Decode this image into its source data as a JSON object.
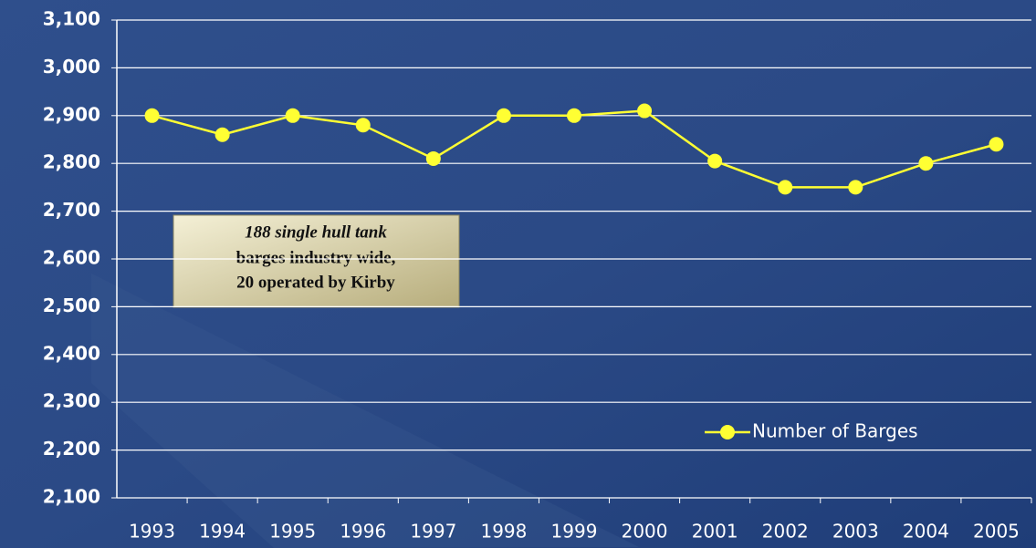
{
  "chart_data": {
    "type": "line",
    "categories": [
      "1993",
      "1994",
      "1995",
      "1996",
      "1997",
      "1998",
      "1999",
      "2000",
      "2001",
      "2002",
      "2003",
      "2004",
      "2005"
    ],
    "series": [
      {
        "name": "Number of Barges",
        "color": "#ffff33",
        "values": [
          2900,
          2860,
          2900,
          2880,
          2810,
          2900,
          2900,
          2910,
          2805,
          2750,
          2750,
          2800,
          2840
        ]
      }
    ],
    "ylim": [
      2100,
      3100
    ],
    "yticks": [
      {
        "value": 2100,
        "label": "2,100"
      },
      {
        "value": 2200,
        "label": "2,200"
      },
      {
        "value": 2300,
        "label": "2,300"
      },
      {
        "value": 2400,
        "label": "2,400"
      },
      {
        "value": 2500,
        "label": "2,500"
      },
      {
        "value": 2600,
        "label": "2,600"
      },
      {
        "value": 2700,
        "label": "2,700"
      },
      {
        "value": 2800,
        "label": "2,800"
      },
      {
        "value": 2900,
        "label": "2,900"
      },
      {
        "value": 3000,
        "label": "3,000"
      },
      {
        "value": 3100,
        "label": "3,100"
      }
    ],
    "grid": true,
    "legend": "lower-right",
    "annotation": [
      "188 single hull tank",
      "barges industry wide,",
      "20 operated by Kirby"
    ]
  }
}
